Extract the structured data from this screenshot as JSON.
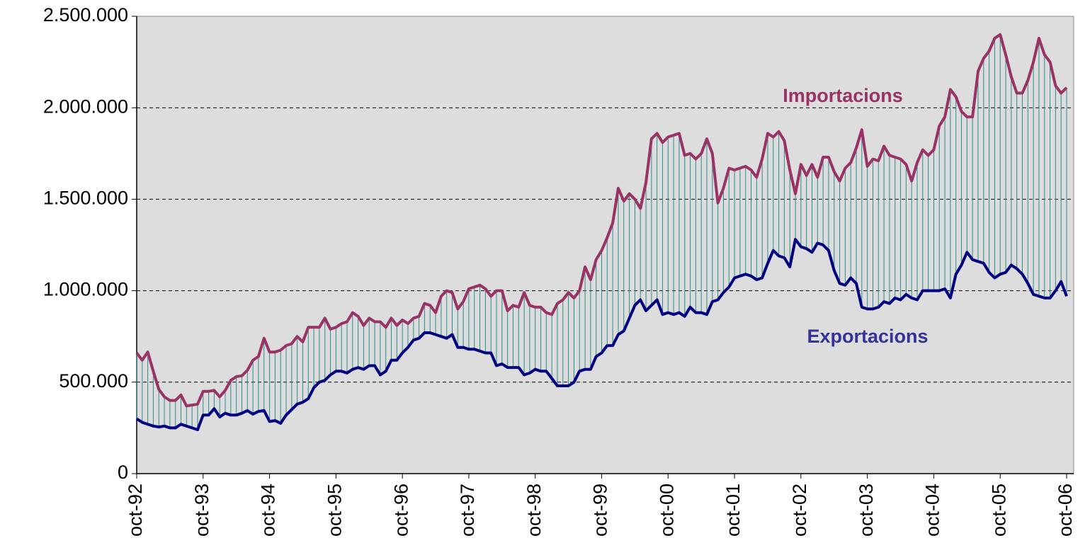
{
  "chart_data": {
    "type": "line",
    "categories": [
      "oct-92",
      null,
      null,
      null,
      null,
      null,
      null,
      null,
      null,
      null,
      null,
      null,
      "oct-93",
      null,
      null,
      null,
      null,
      null,
      null,
      null,
      null,
      null,
      null,
      null,
      "oct-94",
      null,
      null,
      null,
      null,
      null,
      null,
      null,
      null,
      null,
      null,
      null,
      "oct-95",
      null,
      null,
      null,
      null,
      null,
      null,
      null,
      null,
      null,
      null,
      null,
      "oct-96",
      null,
      null,
      null,
      null,
      null,
      null,
      null,
      null,
      null,
      null,
      null,
      "oct-97",
      null,
      null,
      null,
      null,
      null,
      null,
      null,
      null,
      null,
      null,
      null,
      "oct-98",
      null,
      null,
      null,
      null,
      null,
      null,
      null,
      null,
      null,
      null,
      null,
      "oct-99",
      null,
      null,
      null,
      null,
      null,
      null,
      null,
      null,
      null,
      null,
      null,
      "oct-00",
      null,
      null,
      null,
      null,
      null,
      null,
      null,
      null,
      null,
      null,
      null,
      "oct-01",
      null,
      null,
      null,
      null,
      null,
      null,
      null,
      null,
      null,
      null,
      null,
      "oct-02",
      null,
      null,
      null,
      null,
      null,
      null,
      null,
      null,
      null,
      null,
      null,
      "oct-03",
      null,
      null,
      null,
      null,
      null,
      null,
      null,
      null,
      null,
      null,
      null,
      "oct-04",
      null,
      null,
      null,
      null,
      null,
      null,
      null,
      null,
      null,
      null,
      null,
      "oct-05",
      null,
      null,
      null,
      null,
      null,
      null,
      null,
      null,
      null,
      null,
      null,
      "oct-06"
    ],
    "series": [
      {
        "name": "Importacions",
        "color": "#993366",
        "values": [
          660000,
          620000,
          665000,
          560000,
          460000,
          420000,
          400000,
          400000,
          430000,
          370000,
          375000,
          380000,
          450000,
          450000,
          455000,
          420000,
          455000,
          510000,
          530000,
          535000,
          565000,
          620000,
          640000,
          740000,
          665000,
          665000,
          675000,
          700000,
          710000,
          750000,
          720000,
          800000,
          800000,
          800000,
          850000,
          790000,
          800000,
          820000,
          830000,
          880000,
          860000,
          810000,
          850000,
          830000,
          830000,
          800000,
          850000,
          810000,
          840000,
          820000,
          850000,
          860000,
          930000,
          920000,
          880000,
          970000,
          1000000,
          990000,
          900000,
          940000,
          1010000,
          1020000,
          1030000,
          1010000,
          970000,
          1000000,
          1000000,
          890000,
          920000,
          910000,
          990000,
          920000,
          910000,
          910000,
          880000,
          870000,
          930000,
          950000,
          990000,
          960000,
          1000000,
          1130000,
          1060000,
          1170000,
          1220000,
          1290000,
          1370000,
          1560000,
          1490000,
          1530000,
          1500000,
          1450000,
          1590000,
          1830000,
          1860000,
          1810000,
          1840000,
          1850000,
          1860000,
          1740000,
          1750000,
          1720000,
          1750000,
          1830000,
          1750000,
          1480000,
          1560000,
          1670000,
          1660000,
          1670000,
          1680000,
          1660000,
          1620000,
          1720000,
          1860000,
          1840000,
          1870000,
          1820000,
          1660000,
          1530000,
          1690000,
          1630000,
          1690000,
          1620000,
          1730000,
          1730000,
          1650000,
          1600000,
          1670000,
          1700000,
          1780000,
          1880000,
          1680000,
          1720000,
          1710000,
          1790000,
          1740000,
          1730000,
          1720000,
          1690000,
          1600000,
          1700000,
          1770000,
          1740000,
          1770000,
          1900000,
          1950000,
          2100000,
          2060000,
          1980000,
          1950000,
          1950000,
          2200000,
          2270000,
          2310000,
          2380000,
          2400000,
          2290000,
          2170000,
          2080000,
          2080000,
          2150000,
          2250000,
          2380000,
          2290000,
          2250000,
          2120000,
          2080000,
          2110000
        ]
      },
      {
        "name": "Exportacions",
        "color": "#000080",
        "values": [
          300000,
          280000,
          270000,
          260000,
          255000,
          260000,
          250000,
          250000,
          270000,
          260000,
          250000,
          240000,
          320000,
          320000,
          355000,
          310000,
          330000,
          320000,
          320000,
          330000,
          345000,
          325000,
          340000,
          345000,
          285000,
          290000,
          275000,
          320000,
          350000,
          380000,
          390000,
          410000,
          470000,
          500000,
          510000,
          540000,
          560000,
          560000,
          550000,
          570000,
          580000,
          570000,
          590000,
          590000,
          540000,
          560000,
          620000,
          620000,
          660000,
          690000,
          730000,
          740000,
          770000,
          770000,
          760000,
          750000,
          740000,
          760000,
          690000,
          690000,
          680000,
          680000,
          670000,
          660000,
          660000,
          590000,
          600000,
          580000,
          580000,
          580000,
          540000,
          550000,
          570000,
          560000,
          560000,
          520000,
          480000,
          480000,
          480000,
          500000,
          560000,
          570000,
          570000,
          640000,
          660000,
          700000,
          700000,
          760000,
          780000,
          850000,
          920000,
          950000,
          890000,
          920000,
          950000,
          870000,
          880000,
          870000,
          880000,
          860000,
          910000,
          880000,
          880000,
          870000,
          940000,
          950000,
          990000,
          1020000,
          1070000,
          1080000,
          1090000,
          1080000,
          1060000,
          1070000,
          1150000,
          1220000,
          1190000,
          1180000,
          1130000,
          1280000,
          1240000,
          1230000,
          1210000,
          1260000,
          1250000,
          1220000,
          1110000,
          1040000,
          1030000,
          1070000,
          1040000,
          910000,
          900000,
          900000,
          910000,
          940000,
          930000,
          960000,
          950000,
          980000,
          960000,
          950000,
          1000000,
          1000000,
          1000000,
          1000000,
          1010000,
          960000,
          1090000,
          1140000,
          1210000,
          1170000,
          1160000,
          1150000,
          1100000,
          1070000,
          1090000,
          1100000,
          1140000,
          1120000,
          1090000,
          1040000,
          980000,
          970000,
          960000,
          960000,
          1000000,
          1050000,
          970000
        ]
      }
    ],
    "fill_color": "#2e8b8b",
    "ylim": [
      0,
      2500000
    ],
    "yticks": [
      0,
      {
        "value": 500000,
        "label": "500.000"
      },
      {
        "value": 1000000,
        "label": "1.000.000"
      },
      {
        "value": 1500000,
        "label": "1.500.000"
      },
      {
        "value": 2000000,
        "label": "2.000.000"
      },
      {
        "value": 2500000,
        "label": "2.500.000"
      }
    ],
    "grid": true
  }
}
